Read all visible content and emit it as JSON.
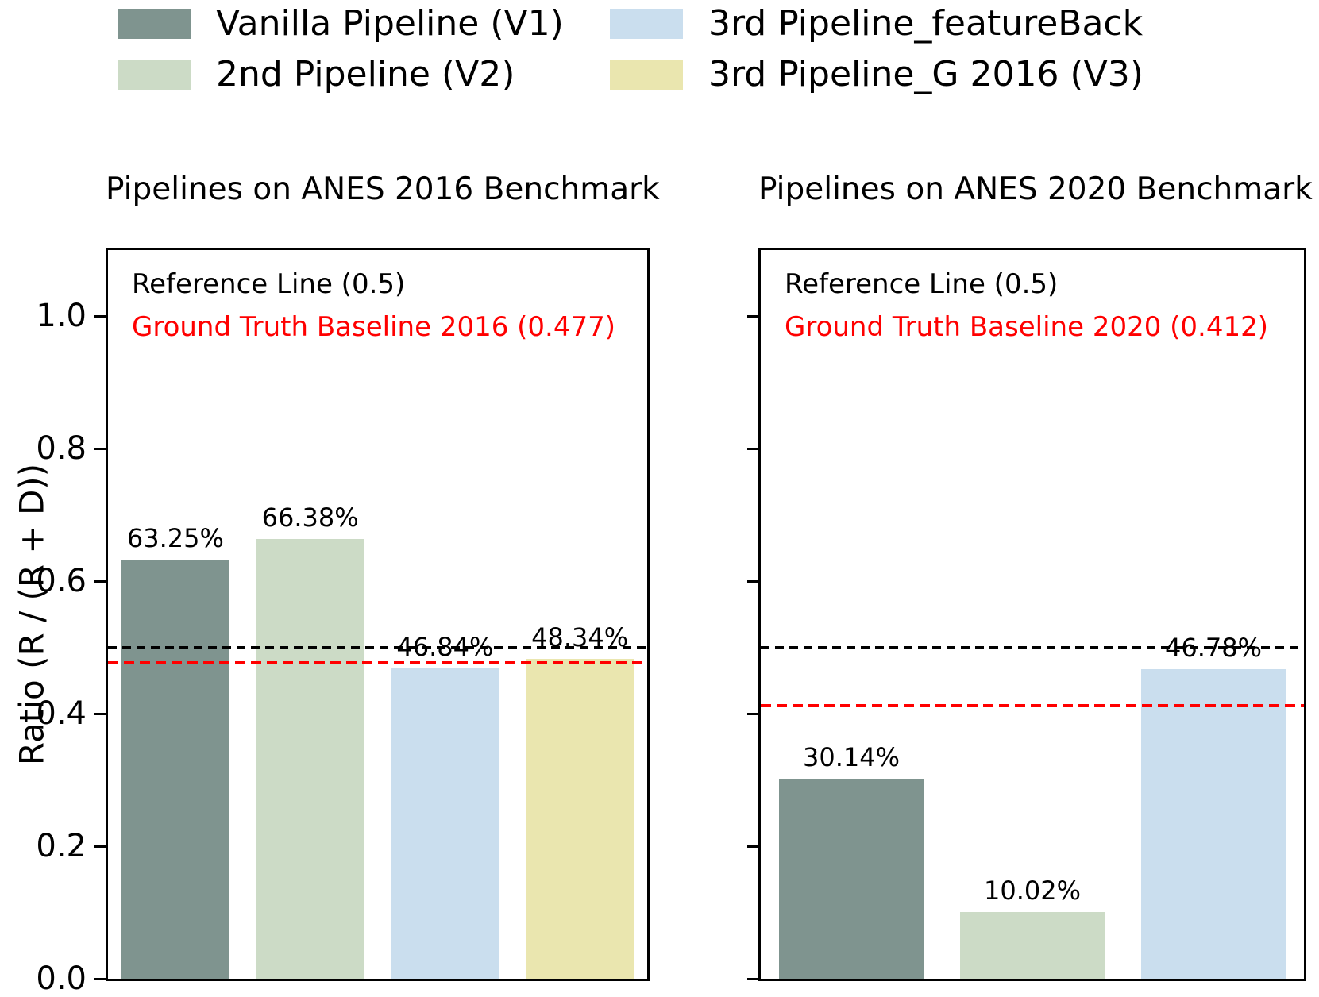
{
  "figure": {
    "ylabel": "Ratio (R / (R + D))",
    "yticks": [
      "0.0",
      "0.2",
      "0.4",
      "0.6",
      "0.8",
      "1.0"
    ],
    "background": "#ffffff",
    "text_color": "#000000"
  },
  "legend": {
    "position": "top-left, two columns, no frame",
    "items": [
      {
        "label": "Vanilla Pipeline (V1)",
        "color": "#7f948f"
      },
      {
        "label": "2nd Pipeline (V2)",
        "color": "#ccdbc6"
      },
      {
        "label": "3rd Pipeline_featureBack",
        "color": "#cadeee"
      },
      {
        "label": "3rd Pipeline_G 2016 (V3)",
        "color": "#eae6af"
      }
    ]
  },
  "chart_data": [
    {
      "type": "bar",
      "title": "Pipelines on ANES 2016 Benchmark",
      "categories": [
        "Vanilla Pipeline (V1)",
        "2nd Pipeline (V2)",
        "3rd Pipeline_featureBack",
        "3rd Pipeline_G 2016 (V3)"
      ],
      "values": [
        0.6325,
        0.6638,
        0.4684,
        0.4834
      ],
      "bar_labels": [
        "63.25%",
        "66.38%",
        "46.84%",
        "48.34%"
      ],
      "bar_colors": [
        "#7f948f",
        "#ccdbc6",
        "#cadeee",
        "#eae6af"
      ],
      "xlabel": "",
      "ylabel": "Ratio (R / (R + D))",
      "ylim": [
        0,
        1.1
      ],
      "grid": false,
      "reference_line": {
        "label": "Reference Line (0.5)",
        "value": 0.5,
        "color": "#000000",
        "style": "dashed"
      },
      "baseline": {
        "label": "Ground Truth Baseline 2016 (0.477)",
        "value": 0.477,
        "color": "#ff0000",
        "style": "dashed"
      }
    },
    {
      "type": "bar",
      "title": "Pipelines on ANES 2020 Benchmark",
      "categories": [
        "Vanilla Pipeline (V1)",
        "2nd Pipeline (V2)",
        "3rd Pipeline_featureBack"
      ],
      "values": [
        0.3014,
        0.1002,
        0.4678
      ],
      "bar_labels": [
        "30.14%",
        "10.02%",
        "46.78%"
      ],
      "bar_colors": [
        "#7f948f",
        "#ccdbc6",
        "#cadeee"
      ],
      "xlabel": "",
      "ylabel": "",
      "ylim": [
        0,
        1.1
      ],
      "grid": false,
      "reference_line": {
        "label": "Reference Line (0.5)",
        "value": 0.5,
        "color": "#000000",
        "style": "dashed"
      },
      "baseline": {
        "label": "Ground Truth Baseline 2020 (0.412)",
        "value": 0.412,
        "color": "#ff0000",
        "style": "dashed"
      }
    }
  ]
}
